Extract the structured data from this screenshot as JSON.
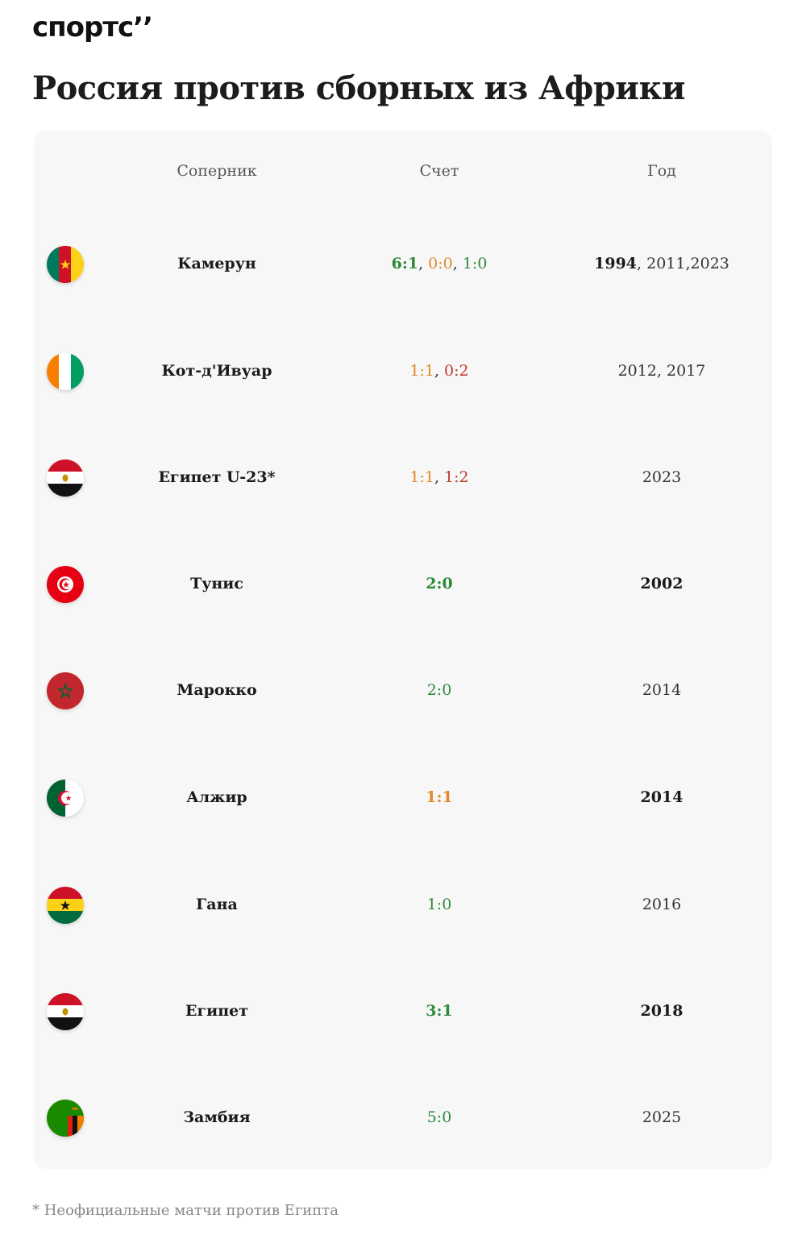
{
  "brand": {
    "logo_text": "спортс’’"
  },
  "title": "Россия против сборных из Африки",
  "table": {
    "headers": {
      "team": "Соперник",
      "score": "Счет",
      "year": "Год"
    },
    "colors": {
      "win": "#2e8b3a",
      "draw": "#e0892a",
      "loss": "#c0392b"
    },
    "rows": [
      {
        "team": "Камерун",
        "flag": "cameroon-flag-icon",
        "scores": [
          {
            "text": "6:1",
            "result": "win",
            "bold": true
          },
          {
            "text": "0:0",
            "result": "draw",
            "bold": false
          },
          {
            "text": "1:0",
            "result": "win",
            "bold": false
          }
        ],
        "years": [
          {
            "text": "1994",
            "bold": true,
            "sep": ", "
          },
          {
            "text": "2011",
            "bold": false,
            "sep": ","
          },
          {
            "text": "2023",
            "bold": false,
            "sep": ""
          }
        ]
      },
      {
        "team": "Кот-д'Ивуар",
        "flag": "ivory-coast-flag-icon",
        "scores": [
          {
            "text": "1:1",
            "result": "draw",
            "bold": false
          },
          {
            "text": "0:2",
            "result": "loss",
            "bold": false
          }
        ],
        "years": [
          {
            "text": "2012",
            "bold": false,
            "sep": ", "
          },
          {
            "text": "2017",
            "bold": false,
            "sep": ""
          }
        ]
      },
      {
        "team": "Египет U-23*",
        "flag": "egypt-flag-icon",
        "scores": [
          {
            "text": "1:1",
            "result": "draw",
            "bold": false
          },
          {
            "text": "1:2",
            "result": "loss",
            "bold": false
          }
        ],
        "years": [
          {
            "text": "2023",
            "bold": false,
            "sep": ""
          }
        ]
      },
      {
        "team": "Тунис",
        "flag": "tunisia-flag-icon",
        "scores": [
          {
            "text": "2:0",
            "result": "win",
            "bold": true
          }
        ],
        "years": [
          {
            "text": "2002",
            "bold": true,
            "sep": ""
          }
        ]
      },
      {
        "team": "Марокко",
        "flag": "morocco-flag-icon",
        "scores": [
          {
            "text": "2:0",
            "result": "win",
            "bold": false
          }
        ],
        "years": [
          {
            "text": "2014",
            "bold": false,
            "sep": ""
          }
        ]
      },
      {
        "team": "Алжир",
        "flag": "algeria-flag-icon",
        "scores": [
          {
            "text": "1:1",
            "result": "draw",
            "bold": true
          }
        ],
        "years": [
          {
            "text": "2014",
            "bold": true,
            "sep": ""
          }
        ]
      },
      {
        "team": "Гана",
        "flag": "ghana-flag-icon",
        "scores": [
          {
            "text": "1:0",
            "result": "win",
            "bold": false
          }
        ],
        "years": [
          {
            "text": "2016",
            "bold": false,
            "sep": ""
          }
        ]
      },
      {
        "team": "Египет",
        "flag": "egypt-flag-icon",
        "scores": [
          {
            "text": "3:1",
            "result": "win",
            "bold": true
          }
        ],
        "years": [
          {
            "text": "2018",
            "bold": true,
            "sep": ""
          }
        ]
      },
      {
        "team": "Замбия",
        "flag": "zambia-flag-icon",
        "scores": [
          {
            "text": "5:0",
            "result": "win",
            "bold": false
          }
        ],
        "years": [
          {
            "text": "2025",
            "bold": false,
            "sep": ""
          }
        ]
      }
    ]
  },
  "footnote": "* Неофициальные матчи против Египта"
}
